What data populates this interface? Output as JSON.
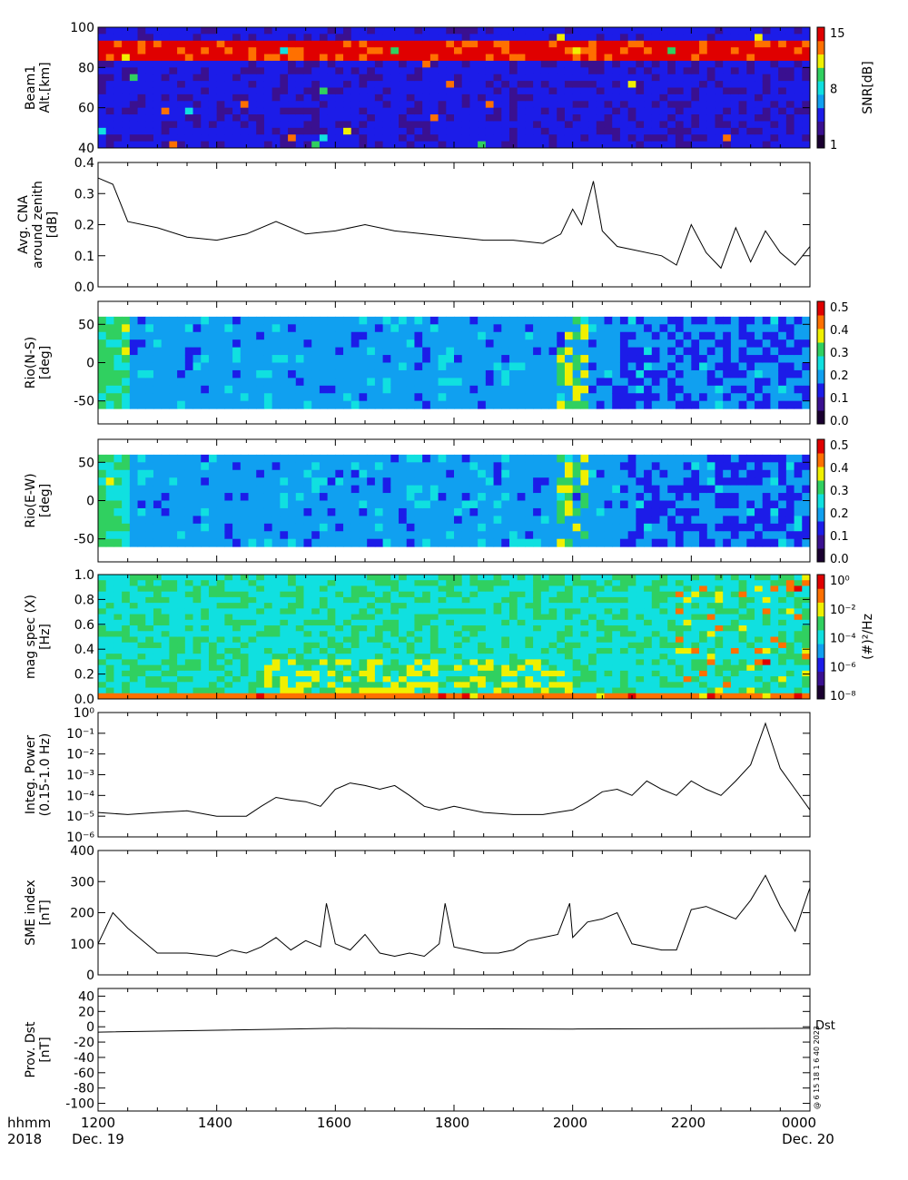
{
  "x_axis": {
    "ticks": [
      "1200",
      "1400",
      "1600",
      "1800",
      "2000",
      "2200",
      "0000"
    ],
    "left_label": [
      "hhmm",
      "2018"
    ],
    "start_date": "Dec. 19",
    "end_date": "Dec. 20"
  },
  "side_text": {
    "dst": "Dst",
    "stamp": "@  6 15 18 1 6 40  2023"
  },
  "colors": {
    "colorbar": [
      "#1a0030",
      "#3a1090",
      "#1c1ce8",
      "#10a0f0",
      "#10e0e0",
      "#30d060",
      "#f0f000",
      "#ff7000",
      "#e00000"
    ]
  },
  "chart_data": [
    {
      "type": "heatmap",
      "ylabel": [
        "Beam1",
        "Alt.[km]"
      ],
      "yticks": [
        "100",
        "80",
        "60",
        "40"
      ],
      "ylim": [
        40,
        100
      ],
      "colorbar": {
        "label": "SNR[dB]",
        "ticks": [
          "15",
          "8",
          "1"
        ],
        "range": [
          1,
          15
        ]
      },
      "bands": [
        {
          "from_km": 82,
          "to_km": 95,
          "level": "high"
        }
      ]
    },
    {
      "type": "line",
      "ylabel": [
        "Avg. CNA",
        "around zenith",
        "[dB]"
      ],
      "yticks": [
        "0.4",
        "0.3",
        "0.2",
        "0.1",
        "0.0"
      ],
      "ylim": [
        0.0,
        0.4
      ],
      "x": [
        12.0,
        12.25,
        12.5,
        13.0,
        13.5,
        14.0,
        14.5,
        15.0,
        15.5,
        16.0,
        16.5,
        17.0,
        17.5,
        18.0,
        18.5,
        19.0,
        19.5,
        19.8,
        20.0,
        20.15,
        20.35,
        20.5,
        20.75,
        21.0,
        21.5,
        21.75,
        22.0,
        22.25,
        22.5,
        22.75,
        23.0,
        23.25,
        23.5,
        23.75,
        24.0
      ],
      "values": [
        0.35,
        0.33,
        0.21,
        0.19,
        0.16,
        0.15,
        0.17,
        0.21,
        0.17,
        0.18,
        0.2,
        0.18,
        0.17,
        0.16,
        0.15,
        0.15,
        0.14,
        0.17,
        0.25,
        0.2,
        0.34,
        0.18,
        0.13,
        0.12,
        0.1,
        0.07,
        0.2,
        0.11,
        0.06,
        0.19,
        0.08,
        0.18,
        0.11,
        0.07,
        0.13
      ]
    },
    {
      "type": "heatmap",
      "ylabel": [
        "Rio(N-S)",
        "[deg]"
      ],
      "yticks": [
        "50",
        "0",
        "-50"
      ],
      "ylim": [
        -80,
        80
      ],
      "colorbar": {
        "ticks": [
          "0.5",
          "0.4",
          "0.3",
          "0.2",
          "0.1",
          "0.0"
        ],
        "range": [
          0.0,
          0.55
        ]
      }
    },
    {
      "type": "heatmap",
      "ylabel": [
        "Rio(E-W)",
        "[deg]"
      ],
      "yticks": [
        "50",
        "0",
        "-50"
      ],
      "ylim": [
        -80,
        80
      ],
      "colorbar": {
        "ticks": [
          "0.5",
          "0.4",
          "0.3",
          "0.2",
          "0.1",
          "0.0"
        ],
        "range": [
          0.0,
          0.55
        ]
      }
    },
    {
      "type": "heatmap",
      "ylabel": [
        "mag spec (X)",
        "[Hz]"
      ],
      "yticks": [
        "1.0",
        "0.8",
        "0.6",
        "0.4",
        "0.2",
        "0.0"
      ],
      "ylim": [
        0.0,
        1.0
      ],
      "colorbar": {
        "label": "(#)²/Hz",
        "ticks": [
          "10⁰",
          "10⁻²",
          "10⁻⁴",
          "10⁻⁶",
          "10⁻⁸"
        ]
      }
    },
    {
      "type": "line",
      "scale": "log",
      "ylabel": [
        "Integ. Power",
        "(0.15-1.0 Hz)"
      ],
      "yticks": [
        "10⁰",
        "10⁻¹",
        "10⁻²",
        "10⁻³",
        "10⁻⁴",
        "10⁻⁵",
        "10⁻⁶"
      ],
      "ylim": [
        1e-06,
        1
      ],
      "x": [
        12.0,
        12.5,
        13.0,
        13.5,
        14.0,
        14.5,
        14.75,
        15.0,
        15.25,
        15.5,
        15.75,
        16.0,
        16.25,
        16.5,
        16.75,
        17.0,
        17.25,
        17.5,
        17.75,
        18.0,
        18.5,
        19.0,
        19.5,
        20.0,
        20.25,
        20.5,
        20.75,
        21.0,
        21.25,
        21.5,
        21.75,
        22.0,
        22.25,
        22.5,
        22.75,
        23.0,
        23.25,
        23.5,
        23.75,
        24.0
      ],
      "values": [
        1.5e-05,
        1.2e-05,
        1.5e-05,
        1.8e-05,
        1e-05,
        1e-05,
        3e-05,
        8e-05,
        6e-05,
        5e-05,
        3e-05,
        0.0002,
        0.0004,
        0.0003,
        0.0002,
        0.0003,
        0.0001,
        3e-05,
        2e-05,
        3e-05,
        1.5e-05,
        1.2e-05,
        1.2e-05,
        2e-05,
        5e-05,
        0.00015,
        0.0002,
        0.0001,
        0.0005,
        0.0002,
        0.0001,
        0.0005,
        0.0002,
        0.0001,
        0.0005,
        0.003,
        0.3,
        0.002,
        0.0002,
        2e-05
      ]
    },
    {
      "type": "line",
      "ylabel": [
        "SME index",
        "[nT]"
      ],
      "yticks": [
        "400",
        "300",
        "200",
        "100",
        "0"
      ],
      "ylim": [
        0,
        400
      ],
      "x": [
        12.0,
        12.25,
        12.5,
        12.75,
        13.0,
        13.5,
        14.0,
        14.25,
        14.5,
        14.75,
        15.0,
        15.25,
        15.5,
        15.75,
        15.85,
        16.0,
        16.25,
        16.5,
        16.75,
        17.0,
        17.25,
        17.5,
        17.75,
        17.85,
        18.0,
        18.25,
        18.5,
        18.75,
        19.0,
        19.25,
        19.5,
        19.75,
        19.95,
        20.0,
        20.25,
        20.5,
        20.75,
        21.0,
        21.25,
        21.5,
        21.75,
        22.0,
        22.25,
        22.5,
        22.75,
        23.0,
        23.25,
        23.5,
        23.75,
        24.0
      ],
      "values": [
        100,
        200,
        150,
        110,
        70,
        70,
        60,
        80,
        70,
        90,
        120,
        80,
        110,
        90,
        230,
        100,
        80,
        130,
        70,
        60,
        70,
        60,
        100,
        230,
        90,
        80,
        70,
        70,
        80,
        110,
        120,
        130,
        230,
        120,
        170,
        180,
        200,
        100,
        90,
        80,
        80,
        210,
        220,
        200,
        180,
        240,
        320,
        220,
        140,
        280
      ]
    },
    {
      "type": "line",
      "ylabel": [
        "Prov. Dst",
        "[nT]"
      ],
      "yticks": [
        "40",
        "20",
        "0",
        "-20",
        "-40",
        "-60",
        "-80",
        "-100"
      ],
      "ylim": [
        -110,
        50
      ],
      "x": [
        12.0,
        16.0,
        20.0,
        24.0
      ],
      "values": [
        -7,
        -2,
        -3,
        -2
      ]
    }
  ]
}
